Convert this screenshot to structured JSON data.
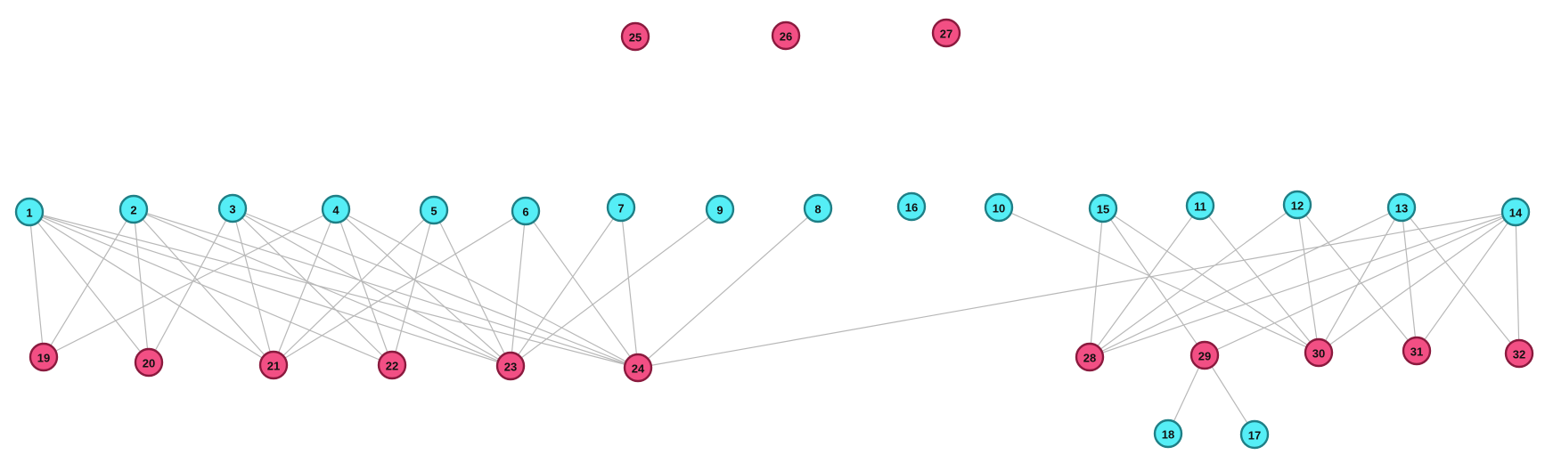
{
  "graph": {
    "node_style": {
      "group_a_color": "#55eef6",
      "group_a_stroke": "#1f7f86",
      "group_b_color": "#f24f84",
      "group_b_stroke": "#8a1a3e",
      "edge_color": "#b8b8b8"
    },
    "nodes": [
      {
        "id": "1",
        "label": "1",
        "group": "a"
      },
      {
        "id": "2",
        "label": "2",
        "group": "a"
      },
      {
        "id": "3",
        "label": "3",
        "group": "a"
      },
      {
        "id": "4",
        "label": "4",
        "group": "a"
      },
      {
        "id": "5",
        "label": "5",
        "group": "a"
      },
      {
        "id": "6",
        "label": "6",
        "group": "a"
      },
      {
        "id": "7",
        "label": "7",
        "group": "a"
      },
      {
        "id": "8",
        "label": "8",
        "group": "a"
      },
      {
        "id": "9",
        "label": "9",
        "group": "a"
      },
      {
        "id": "10",
        "label": "10",
        "group": "a"
      },
      {
        "id": "11",
        "label": "11",
        "group": "a"
      },
      {
        "id": "12",
        "label": "12",
        "group": "a"
      },
      {
        "id": "13",
        "label": "13",
        "group": "a"
      },
      {
        "id": "14",
        "label": "14",
        "group": "a"
      },
      {
        "id": "15",
        "label": "15",
        "group": "a"
      },
      {
        "id": "16",
        "label": "16",
        "group": "a"
      },
      {
        "id": "17",
        "label": "17",
        "group": "a"
      },
      {
        "id": "18",
        "label": "18",
        "group": "a"
      },
      {
        "id": "19",
        "label": "19",
        "group": "b"
      },
      {
        "id": "20",
        "label": "20",
        "group": "b"
      },
      {
        "id": "21",
        "label": "21",
        "group": "b"
      },
      {
        "id": "22",
        "label": "22",
        "group": "b"
      },
      {
        "id": "23",
        "label": "23",
        "group": "b"
      },
      {
        "id": "24",
        "label": "24",
        "group": "b"
      },
      {
        "id": "25",
        "label": "25",
        "group": "b"
      },
      {
        "id": "26",
        "label": "26",
        "group": "b"
      },
      {
        "id": "27",
        "label": "27",
        "group": "b"
      },
      {
        "id": "28",
        "label": "28",
        "group": "b"
      },
      {
        "id": "29",
        "label": "29",
        "group": "b"
      },
      {
        "id": "30",
        "label": "30",
        "group": "b"
      },
      {
        "id": "31",
        "label": "31",
        "group": "b"
      },
      {
        "id": "32",
        "label": "32",
        "group": "b"
      }
    ],
    "edges": [
      [
        "1",
        "19"
      ],
      [
        "1",
        "20"
      ],
      [
        "1",
        "21"
      ],
      [
        "1",
        "22"
      ],
      [
        "1",
        "23"
      ],
      [
        "1",
        "24"
      ],
      [
        "2",
        "19"
      ],
      [
        "2",
        "20"
      ],
      [
        "2",
        "21"
      ],
      [
        "2",
        "23"
      ],
      [
        "2",
        "24"
      ],
      [
        "3",
        "20"
      ],
      [
        "3",
        "21"
      ],
      [
        "3",
        "22"
      ],
      [
        "3",
        "23"
      ],
      [
        "3",
        "24"
      ],
      [
        "4",
        "19"
      ],
      [
        "4",
        "21"
      ],
      [
        "4",
        "22"
      ],
      [
        "4",
        "23"
      ],
      [
        "4",
        "24"
      ],
      [
        "5",
        "21"
      ],
      [
        "5",
        "22"
      ],
      [
        "5",
        "23"
      ],
      [
        "6",
        "21"
      ],
      [
        "6",
        "23"
      ],
      [
        "6",
        "24"
      ],
      [
        "7",
        "23"
      ],
      [
        "7",
        "24"
      ],
      [
        "9",
        "23"
      ],
      [
        "8",
        "24"
      ],
      [
        "10",
        "30"
      ],
      [
        "11",
        "28"
      ],
      [
        "11",
        "30"
      ],
      [
        "12",
        "28"
      ],
      [
        "12",
        "30"
      ],
      [
        "12",
        "31"
      ],
      [
        "13",
        "28"
      ],
      [
        "13",
        "30"
      ],
      [
        "13",
        "31"
      ],
      [
        "13",
        "32"
      ],
      [
        "14",
        "24"
      ],
      [
        "14",
        "28"
      ],
      [
        "14",
        "29"
      ],
      [
        "14",
        "30"
      ],
      [
        "14",
        "31"
      ],
      [
        "14",
        "32"
      ],
      [
        "15",
        "28"
      ],
      [
        "15",
        "29"
      ],
      [
        "15",
        "30"
      ],
      [
        "29",
        "18"
      ],
      [
        "29",
        "17"
      ]
    ]
  }
}
